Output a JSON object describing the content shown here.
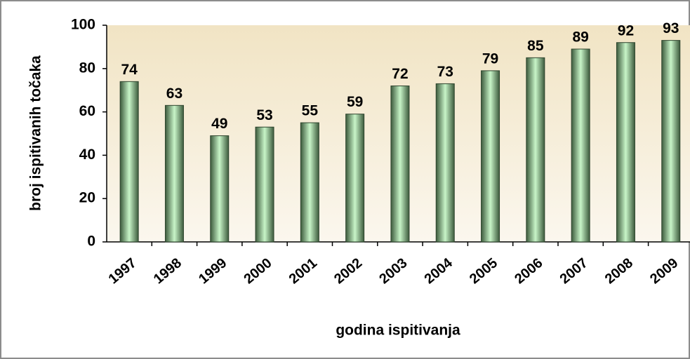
{
  "chart_data": {
    "type": "bar",
    "categories": [
      "1997",
      "1998",
      "1999",
      "2000",
      "2001",
      "2002",
      "2003",
      "2004",
      "2005",
      "2006",
      "2007",
      "2008",
      "2009"
    ],
    "values": [
      74,
      63,
      49,
      53,
      55,
      59,
      72,
      73,
      79,
      85,
      89,
      92,
      93
    ],
    "color": "#4a6b4a",
    "ylim": [
      0,
      100
    ],
    "yticks": [
      0,
      20,
      40,
      60,
      80,
      100
    ],
    "y_label": "broj ispitivanih točaka",
    "x_label": "godina ispitivanja"
  }
}
